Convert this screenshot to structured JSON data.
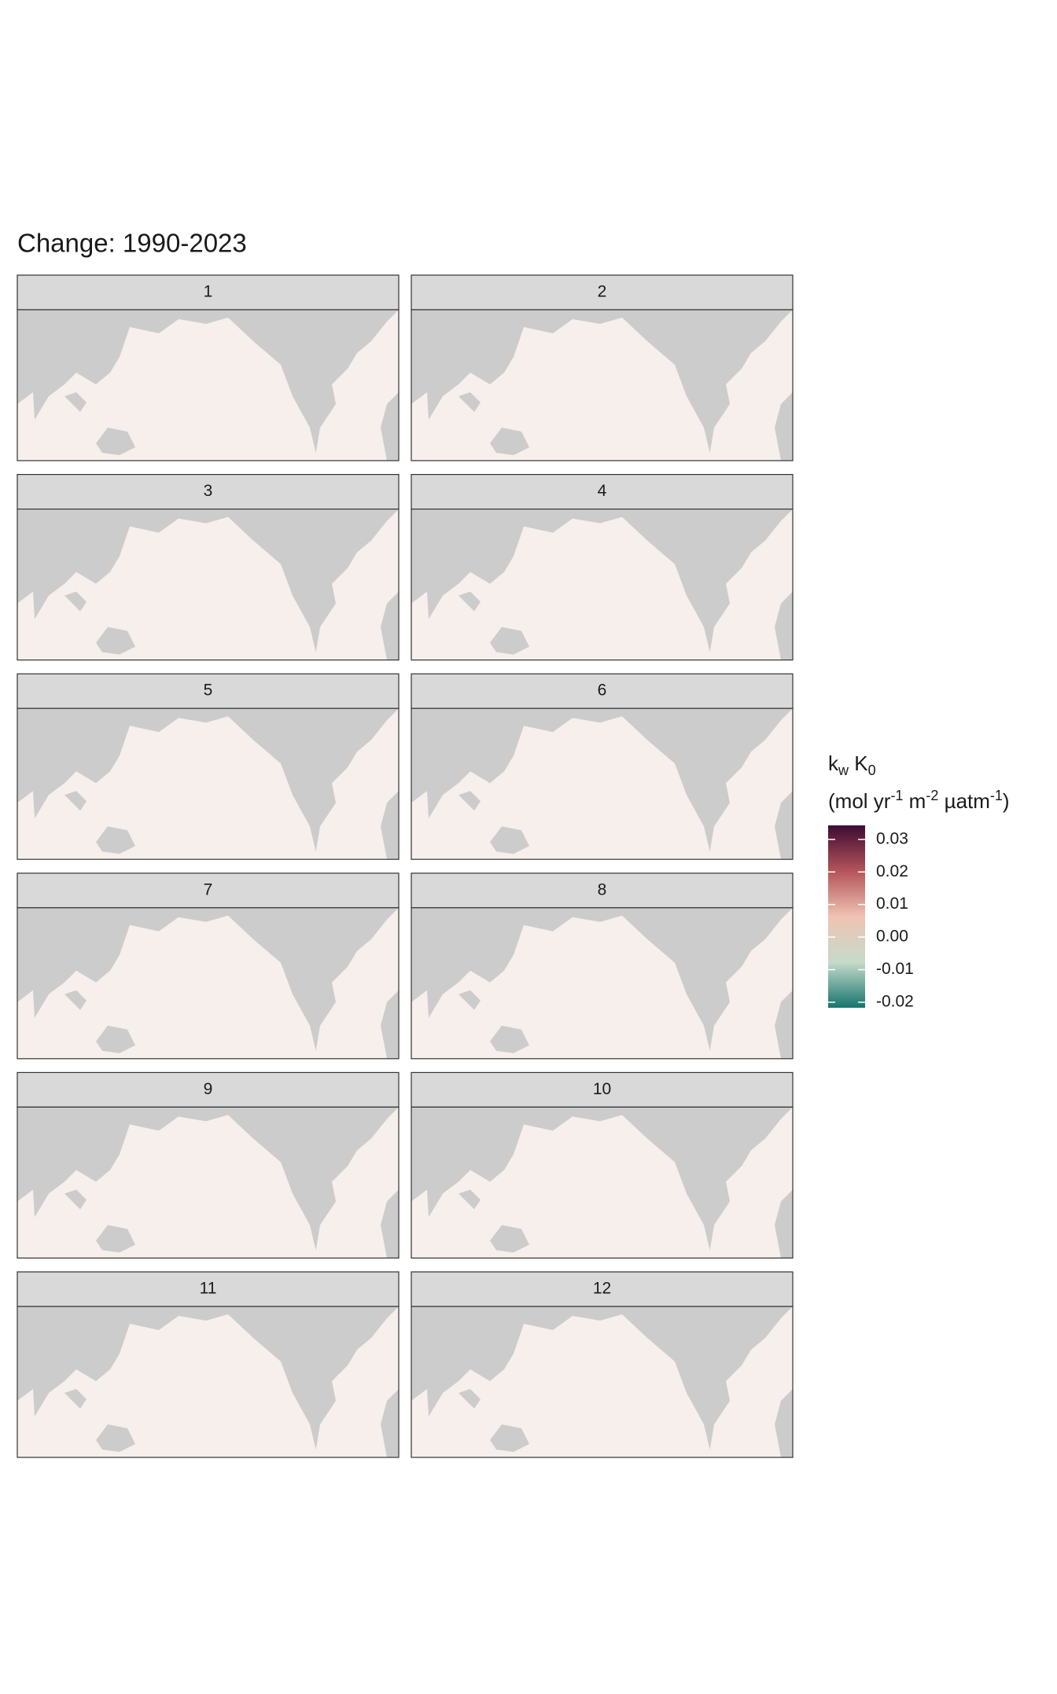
{
  "chart_data": {
    "type": "map",
    "title": "Change:  1990-2023",
    "panels": [
      "1",
      "2",
      "3",
      "4",
      "5",
      "6",
      "7",
      "8",
      "9",
      "10",
      "11",
      "12"
    ],
    "legend_title": {
      "k": "k",
      "k_sub": "w",
      "K": " K",
      "K_sub": "0",
      "units_open": "(mol yr",
      "sup1": "-1",
      "m": " m",
      "sup2": "-2",
      "uatm": " µatm",
      "sup3": "-1",
      "units_close": ")"
    },
    "clim": [
      -0.0217,
      0.0343
    ],
    "colors": [
      "#16746d",
      "#c6dbcb",
      "#efc3b3",
      "#b4545a",
      "#3d0b33"
    ],
    "cticks": [
      0.03,
      0.02,
      0.01,
      {
        "value": 0,
        "label": "0.00"
      },
      -0.01,
      -0.02
    ],
    "land_color": "#cccccc",
    "ocean_color": "#f6efeb"
  }
}
